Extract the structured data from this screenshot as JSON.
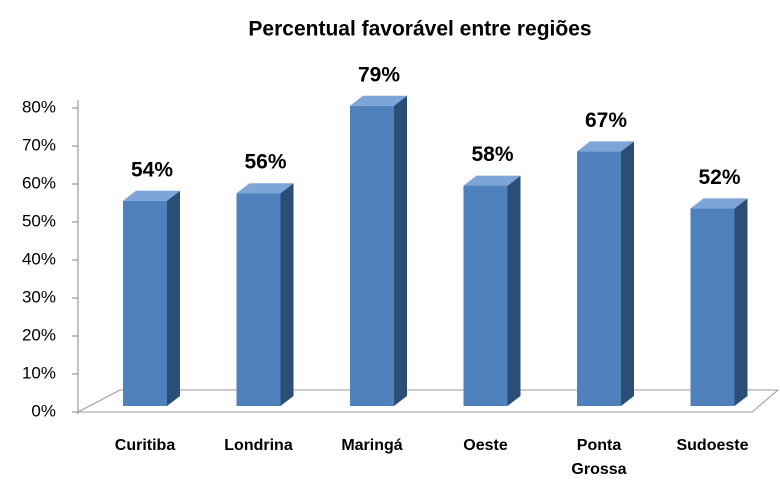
{
  "chart_data": {
    "type": "bar3d",
    "title": "Percentual favorável entre regiões",
    "categories": [
      "Curitiba",
      "Londrina",
      "Maringá",
      "Oeste",
      "Ponta Grossa",
      "Sudoeste"
    ],
    "values": [
      54,
      56,
      79,
      58,
      67,
      52
    ],
    "value_labels": [
      "54%",
      "56%",
      "79%",
      "58%",
      "67%",
      "52%"
    ],
    "color": "#4f81bd",
    "ylim": [
      0,
      80
    ],
    "yticks": [
      {
        "value": 0,
        "label": "0%"
      },
      {
        "value": 10,
        "label": "10%"
      },
      {
        "value": 20,
        "label": "20%"
      },
      {
        "value": 30,
        "label": "30%"
      },
      {
        "value": 40,
        "label": "40%"
      },
      {
        "value": 50,
        "label": "50%"
      },
      {
        "value": 60,
        "label": "60%"
      },
      {
        "value": 70,
        "label": "70%"
      },
      {
        "value": 80,
        "label": "80%"
      }
    ]
  }
}
